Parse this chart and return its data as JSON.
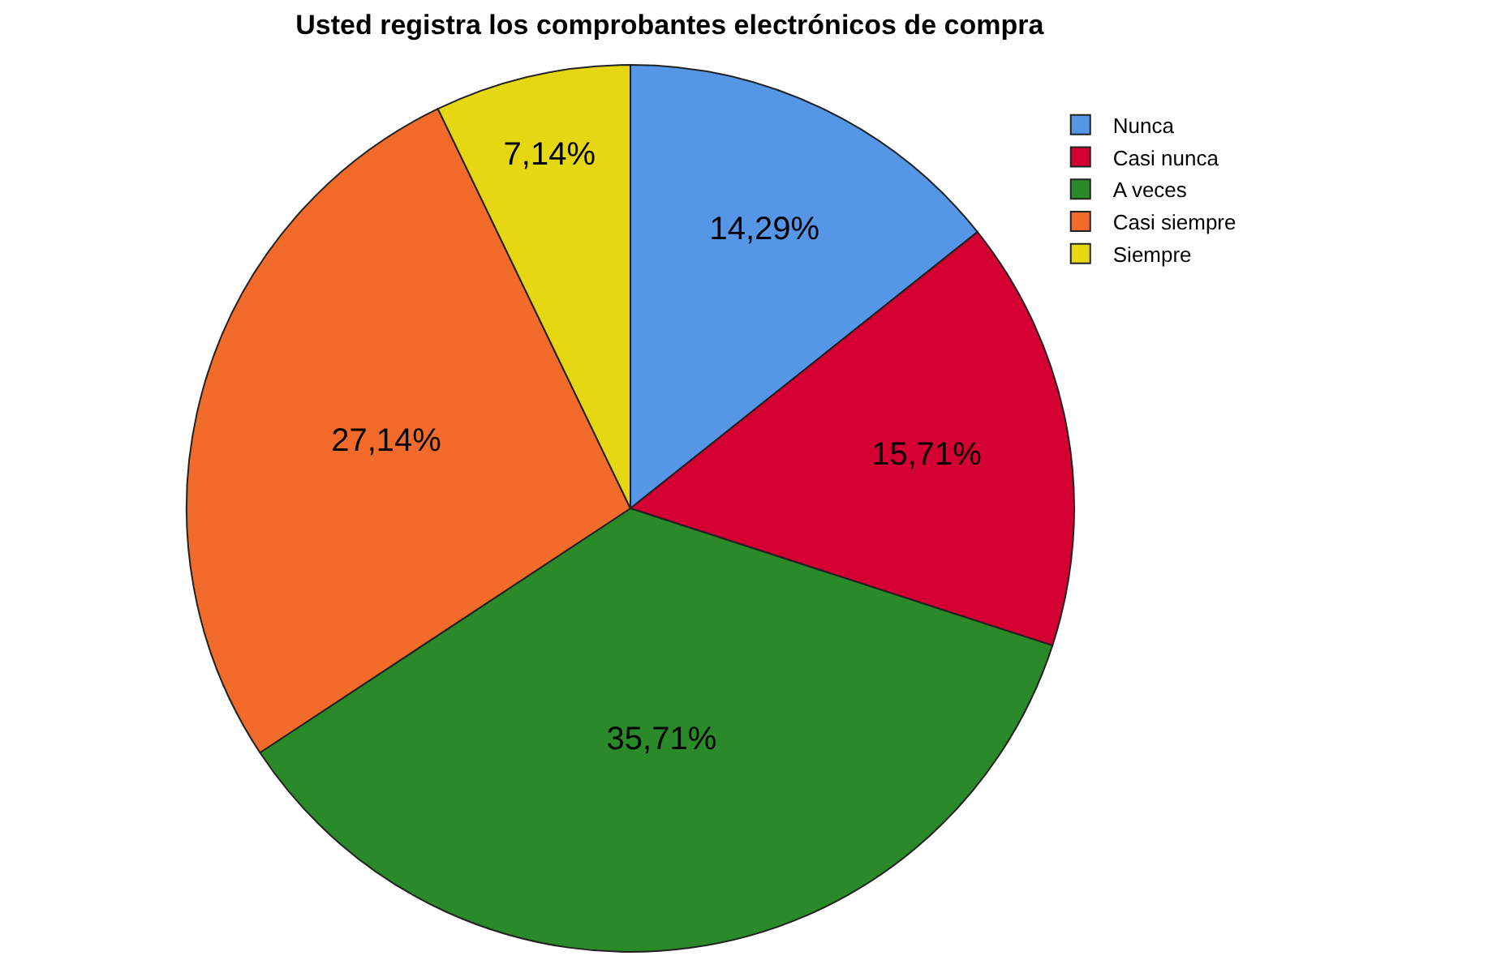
{
  "chart_data": {
    "type": "pie",
    "title": "Usted registra los comprobantes electrónicos de compra",
    "categories": [
      "Nunca",
      "Casi nunca",
      "A veces",
      "Casi siempre",
      "Siempre"
    ],
    "values": [
      14.29,
      15.71,
      35.71,
      27.14,
      7.14
    ],
    "value_labels": [
      "14,29%",
      "15,71%",
      "35,71%",
      "27,14%",
      "7,14%"
    ],
    "colors": [
      "#5596e6",
      "#d50032",
      "#2a8a2a",
      "#f26b2b",
      "#e5d812"
    ],
    "legend": "top right"
  }
}
